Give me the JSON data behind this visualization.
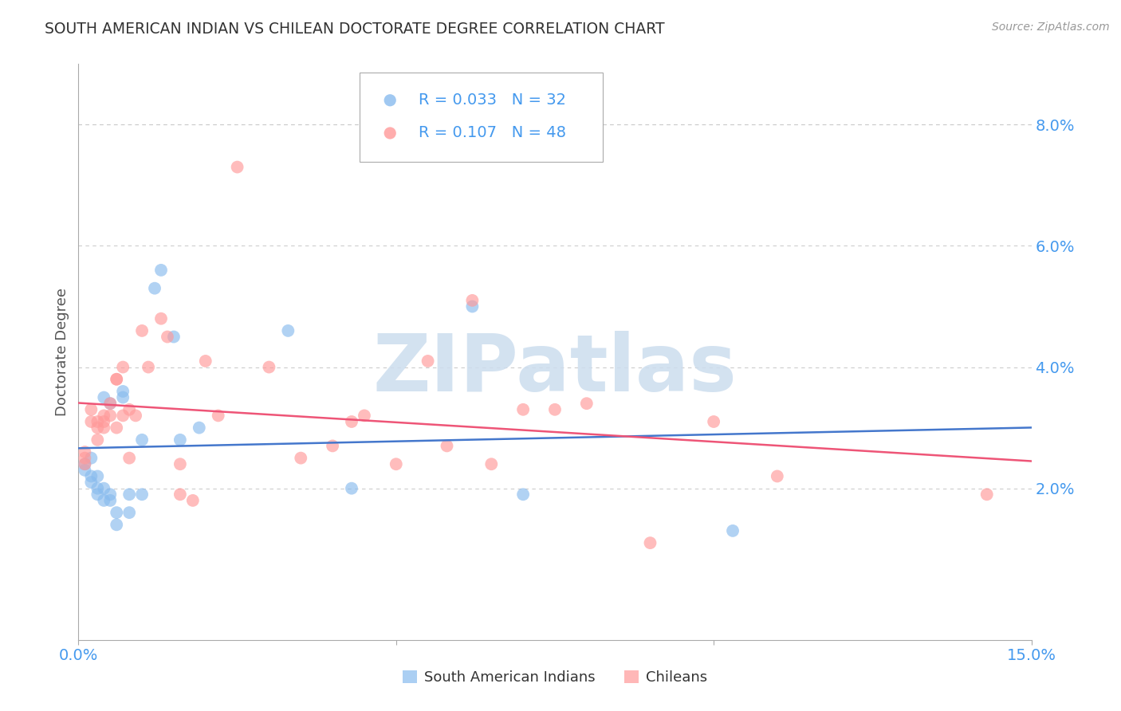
{
  "title": "SOUTH AMERICAN INDIAN VS CHILEAN DOCTORATE DEGREE CORRELATION CHART",
  "source": "Source: ZipAtlas.com",
  "ylabel": "Doctorate Degree",
  "right_yticks": [
    "2.0%",
    "4.0%",
    "6.0%",
    "8.0%"
  ],
  "right_ytick_vals": [
    0.02,
    0.04,
    0.06,
    0.08
  ],
  "xlim": [
    0.0,
    0.15
  ],
  "ylim": [
    -0.005,
    0.09
  ],
  "legend_label1": "South American Indians",
  "legend_label2": "Chileans",
  "legend_R1": "R = 0.033",
  "legend_N1": "N = 32",
  "legend_R2": "R = 0.107",
  "legend_N2": "N = 48",
  "color_blue": "#88BBEE",
  "color_pink": "#FF9999",
  "color_trendline_blue": "#4477CC",
  "color_trendline_pink": "#EE5577",
  "color_axis_labels": "#4499EE",
  "color_title": "#333333",
  "color_grid": "#CCCCCC",
  "blue_points": [
    [
      0.001,
      0.024
    ],
    [
      0.001,
      0.023
    ],
    [
      0.002,
      0.025
    ],
    [
      0.002,
      0.022
    ],
    [
      0.002,
      0.021
    ],
    [
      0.003,
      0.02
    ],
    [
      0.003,
      0.019
    ],
    [
      0.003,
      0.022
    ],
    [
      0.004,
      0.02
    ],
    [
      0.004,
      0.018
    ],
    [
      0.004,
      0.035
    ],
    [
      0.005,
      0.034
    ],
    [
      0.005,
      0.019
    ],
    [
      0.005,
      0.018
    ],
    [
      0.006,
      0.016
    ],
    [
      0.006,
      0.014
    ],
    [
      0.007,
      0.036
    ],
    [
      0.007,
      0.035
    ],
    [
      0.008,
      0.019
    ],
    [
      0.008,
      0.016
    ],
    [
      0.01,
      0.028
    ],
    [
      0.01,
      0.019
    ],
    [
      0.012,
      0.053
    ],
    [
      0.013,
      0.056
    ],
    [
      0.015,
      0.045
    ],
    [
      0.016,
      0.028
    ],
    [
      0.019,
      0.03
    ],
    [
      0.033,
      0.046
    ],
    [
      0.043,
      0.02
    ],
    [
      0.062,
      0.05
    ],
    [
      0.07,
      0.019
    ],
    [
      0.103,
      0.013
    ]
  ],
  "pink_points": [
    [
      0.001,
      0.026
    ],
    [
      0.001,
      0.025
    ],
    [
      0.001,
      0.024
    ],
    [
      0.002,
      0.033
    ],
    [
      0.002,
      0.031
    ],
    [
      0.003,
      0.031
    ],
    [
      0.003,
      0.03
    ],
    [
      0.003,
      0.028
    ],
    [
      0.004,
      0.032
    ],
    [
      0.004,
      0.031
    ],
    [
      0.004,
      0.03
    ],
    [
      0.005,
      0.034
    ],
    [
      0.005,
      0.032
    ],
    [
      0.006,
      0.038
    ],
    [
      0.006,
      0.038
    ],
    [
      0.006,
      0.03
    ],
    [
      0.007,
      0.04
    ],
    [
      0.007,
      0.032
    ],
    [
      0.008,
      0.025
    ],
    [
      0.008,
      0.033
    ],
    [
      0.009,
      0.032
    ],
    [
      0.01,
      0.046
    ],
    [
      0.011,
      0.04
    ],
    [
      0.013,
      0.048
    ],
    [
      0.014,
      0.045
    ],
    [
      0.016,
      0.024
    ],
    [
      0.016,
      0.019
    ],
    [
      0.018,
      0.018
    ],
    [
      0.02,
      0.041
    ],
    [
      0.022,
      0.032
    ],
    [
      0.025,
      0.073
    ],
    [
      0.03,
      0.04
    ],
    [
      0.035,
      0.025
    ],
    [
      0.04,
      0.027
    ],
    [
      0.043,
      0.031
    ],
    [
      0.045,
      0.032
    ],
    [
      0.05,
      0.024
    ],
    [
      0.055,
      0.041
    ],
    [
      0.058,
      0.027
    ],
    [
      0.062,
      0.051
    ],
    [
      0.065,
      0.024
    ],
    [
      0.07,
      0.033
    ],
    [
      0.075,
      0.033
    ],
    [
      0.08,
      0.034
    ],
    [
      0.09,
      0.011
    ],
    [
      0.1,
      0.031
    ],
    [
      0.11,
      0.022
    ],
    [
      0.143,
      0.019
    ]
  ],
  "watermark_text": "ZIPatlas",
  "watermark_color": "#CCDDEE"
}
